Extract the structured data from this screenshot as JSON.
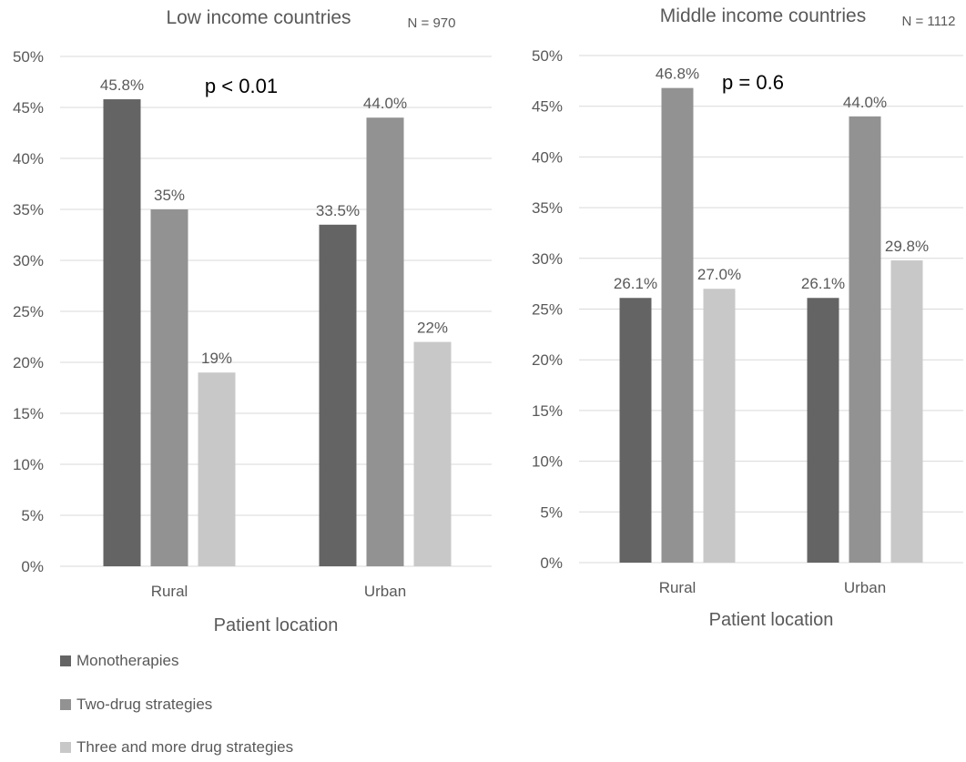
{
  "chart_data": [
    {
      "type": "bar",
      "title": "Low income countries",
      "n_label": "N = 970",
      "annotation": "p < 0.01",
      "xlabel": "Patient location",
      "ylabel": "",
      "categories": [
        "Rural",
        "Urban"
      ],
      "ylim": [
        0,
        50
      ],
      "yticks": [
        0,
        5,
        10,
        15,
        20,
        25,
        30,
        35,
        40,
        45,
        50
      ],
      "ytick_labels": [
        "0%",
        "5%",
        "10%",
        "15%",
        "20%",
        "25%",
        "30%",
        "35%",
        "40%",
        "45%",
        "50%"
      ],
      "grid": true,
      "series": [
        {
          "name": "Monotherapies",
          "values": [
            45.8,
            33.5
          ],
          "labels": [
            "45.8%",
            "33.5%"
          ],
          "color": "#646464"
        },
        {
          "name": "Two-drug strategies",
          "values": [
            35,
            44.0
          ],
          "labels": [
            "35%",
            "44.0%"
          ],
          "color": "#929292"
        },
        {
          "name": "Three and more drug strategies",
          "values": [
            19,
            22
          ],
          "labels": [
            "19%",
            "22%"
          ],
          "color": "#c8c8c8"
        }
      ]
    },
    {
      "type": "bar",
      "title": "Middle income countries",
      "n_label": "N = 1112",
      "annotation": "p = 0.6",
      "xlabel": "Patient location",
      "ylabel": "",
      "categories": [
        "Rural",
        "Urban"
      ],
      "ylim": [
        0,
        50
      ],
      "yticks": [
        0,
        5,
        10,
        15,
        20,
        25,
        30,
        35,
        40,
        45,
        50
      ],
      "ytick_labels": [
        "0%",
        "5%",
        "10%",
        "15%",
        "20%",
        "25%",
        "30%",
        "35%",
        "40%",
        "45%",
        "50%"
      ],
      "grid": true,
      "series": [
        {
          "name": "Monotherapies",
          "values": [
            26.1,
            26.1
          ],
          "labels": [
            "26.1%",
            "26.1%"
          ],
          "color": "#646464"
        },
        {
          "name": "Two-drug strategies",
          "values": [
            46.8,
            44.0
          ],
          "labels": [
            "46.8%",
            "44.0%"
          ],
          "color": "#929292"
        },
        {
          "name": "Three and more drug strategies",
          "values": [
            27.0,
            29.8
          ],
          "labels": [
            "27.0%",
            "29.8%"
          ],
          "color": "#c8c8c8"
        }
      ]
    }
  ],
  "legend": {
    "items": [
      {
        "label": "Monotherapies",
        "color": "#646464"
      },
      {
        "label": "Two-drug strategies",
        "color": "#929292"
      },
      {
        "label": "Three and more drug strategies",
        "color": "#c8c8c8"
      }
    ]
  }
}
